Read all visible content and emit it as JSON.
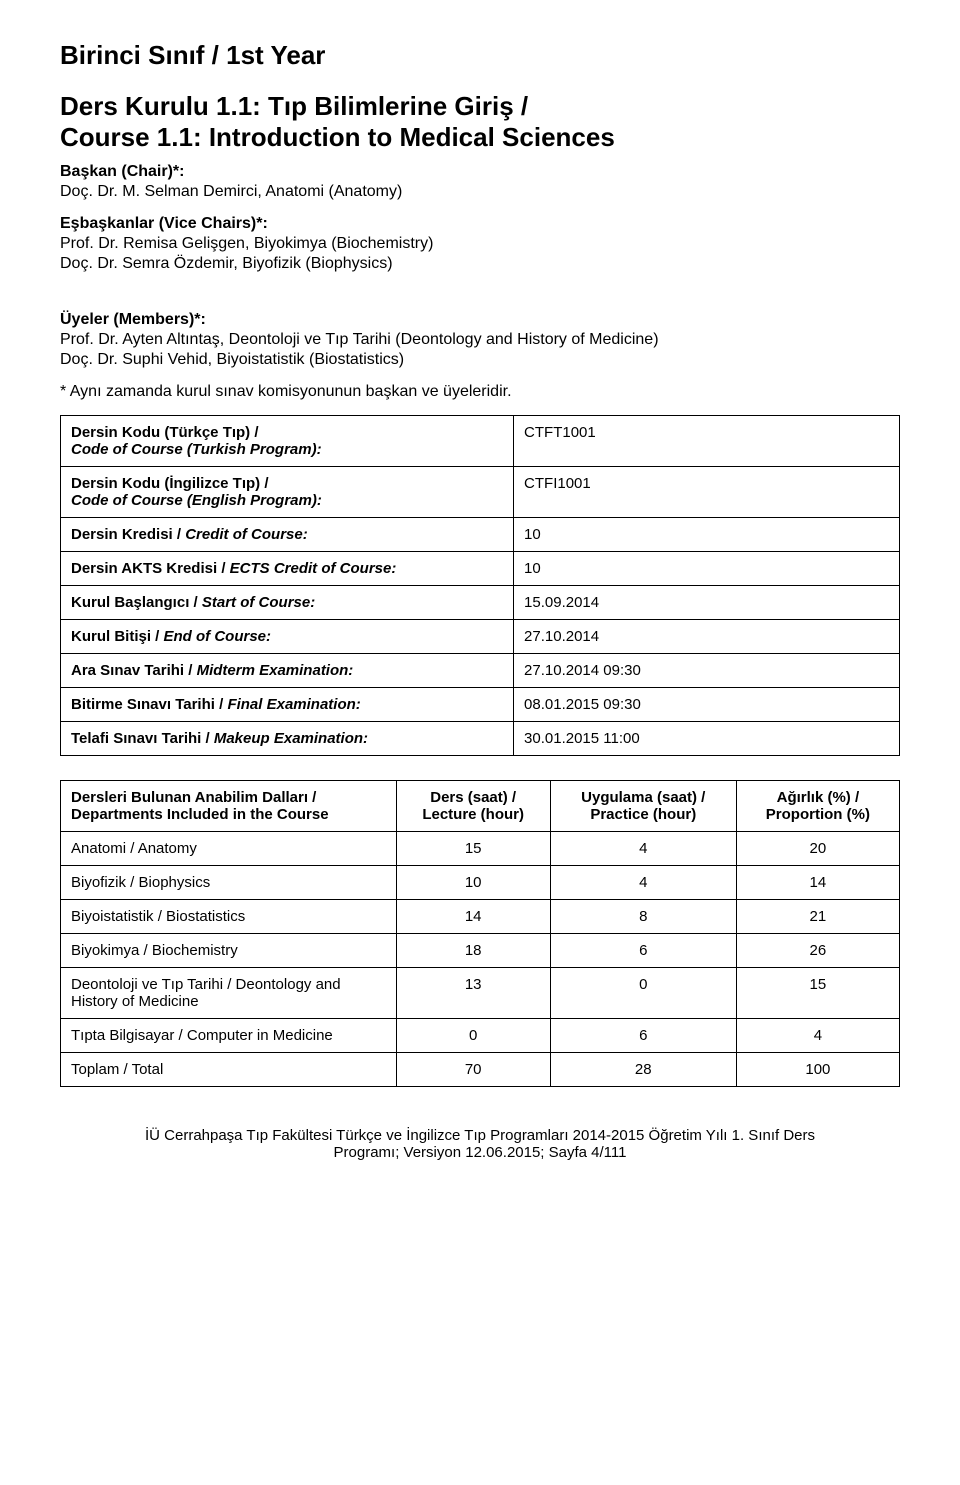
{
  "headings": {
    "year": "Birinci Sınıf / 1st Year",
    "course_title_tr": "Ders Kurulu 1.1: Tıp Bilimlerine Giriş /",
    "course_title_en": "Course 1.1: Introduction to Medical Sciences"
  },
  "chair": {
    "label": "Başkan (Chair)*:",
    "name": "Doç. Dr. M. Selman Demirci, Anatomi (Anatomy)"
  },
  "vicechairs": {
    "label": "Eşbaşkanlar (Vice Chairs)*:",
    "names": [
      "Prof. Dr. Remisa Gelişgen, Biyokimya (Biochemistry)",
      "Doç. Dr. Semra Özdemir, Biyofizik (Biophysics)"
    ]
  },
  "members": {
    "label": "Üyeler (Members)*:",
    "names": [
      "Prof. Dr. Ayten Altıntaş, Deontoloji ve Tıp Tarihi (Deontology and History of Medicine)",
      "Doç. Dr. Suphi Vehid, Biyoistatistik (Biostatistics)"
    ]
  },
  "note": "* Aynı zamanda kurul sınav komisyonunun başkan ve üyeleridir.",
  "info_rows": [
    {
      "label_bold": "Dersin Kodu (Türkçe Tıp) /",
      "label_ital": "Code of Course (Turkish Program):",
      "value": "CTFT1001"
    },
    {
      "label_bold": "Dersin Kodu (İngilizce Tıp) /",
      "label_ital": "Code of Course (English Program):",
      "value": "CTFI1001"
    },
    {
      "label_bold": "Dersin Kredisi / ",
      "label_ital": "Credit of Course:",
      "value": "10",
      "inline": true
    },
    {
      "label_bold": "Dersin AKTS Kredisi / ",
      "label_ital": "ECTS Credit of Course:",
      "value": "10",
      "inline": true
    },
    {
      "label_bold": "Kurul Başlangıcı / ",
      "label_ital": "Start of Course:",
      "value": "15.09.2014",
      "inline": true
    },
    {
      "label_bold": "Kurul Bitişi / ",
      "label_ital": "End of Course:",
      "value": "27.10.2014",
      "inline": true
    },
    {
      "label_bold": "Ara Sınav Tarihi / ",
      "label_ital": "Midterm Examination:",
      "value": "27.10.2014 09:30",
      "inline": true
    },
    {
      "label_bold": "Bitirme Sınavı Tarihi / ",
      "label_ital": "Final Examination:",
      "value": "08.01.2015 09:30",
      "inline": true
    },
    {
      "label_bold": "Telafi Sınavı Tarihi / ",
      "label_ital": "Makeup Examination:",
      "value": "30.01.2015 11:00",
      "inline": true
    }
  ],
  "dept_table": {
    "headers": {
      "c0": "Dersleri Bulunan Anabilim Dalları / Departments Included in the Course",
      "c1": "Ders (saat) / Lecture (hour)",
      "c2": "Uygulama (saat) / Practice (hour)",
      "c3": "Ağırlık (%) / Proportion (%)"
    },
    "rows": [
      {
        "name": "Anatomi / Anatomy",
        "lec": "15",
        "prac": "4",
        "prop": "20"
      },
      {
        "name": "Biyofizik / Biophysics",
        "lec": "10",
        "prac": "4",
        "prop": "14"
      },
      {
        "name": "Biyoistatistik / Biostatistics",
        "lec": "14",
        "prac": "8",
        "prop": "21"
      },
      {
        "name": "Biyokimya / Biochemistry",
        "lec": "18",
        "prac": "6",
        "prop": "26"
      },
      {
        "name": "Deontoloji ve Tıp Tarihi / Deontology and History of Medicine",
        "lec": "13",
        "prac": "0",
        "prop": "15"
      },
      {
        "name": "Tıpta Bilgisayar / Computer in Medicine",
        "lec": "0",
        "prac": "6",
        "prop": "4"
      },
      {
        "name": "Toplam / Total",
        "lec": "70",
        "prac": "28",
        "prop": "100"
      }
    ]
  },
  "footer": {
    "line1": "İÜ Cerrahpaşa Tıp Fakültesi Türkçe ve İngilizce Tıp Programları 2014-2015 Öğretim Yılı 1. Sınıf Ders",
    "line2": "Programı; Versiyon 12.06.2015; Sayfa 4/111"
  }
}
